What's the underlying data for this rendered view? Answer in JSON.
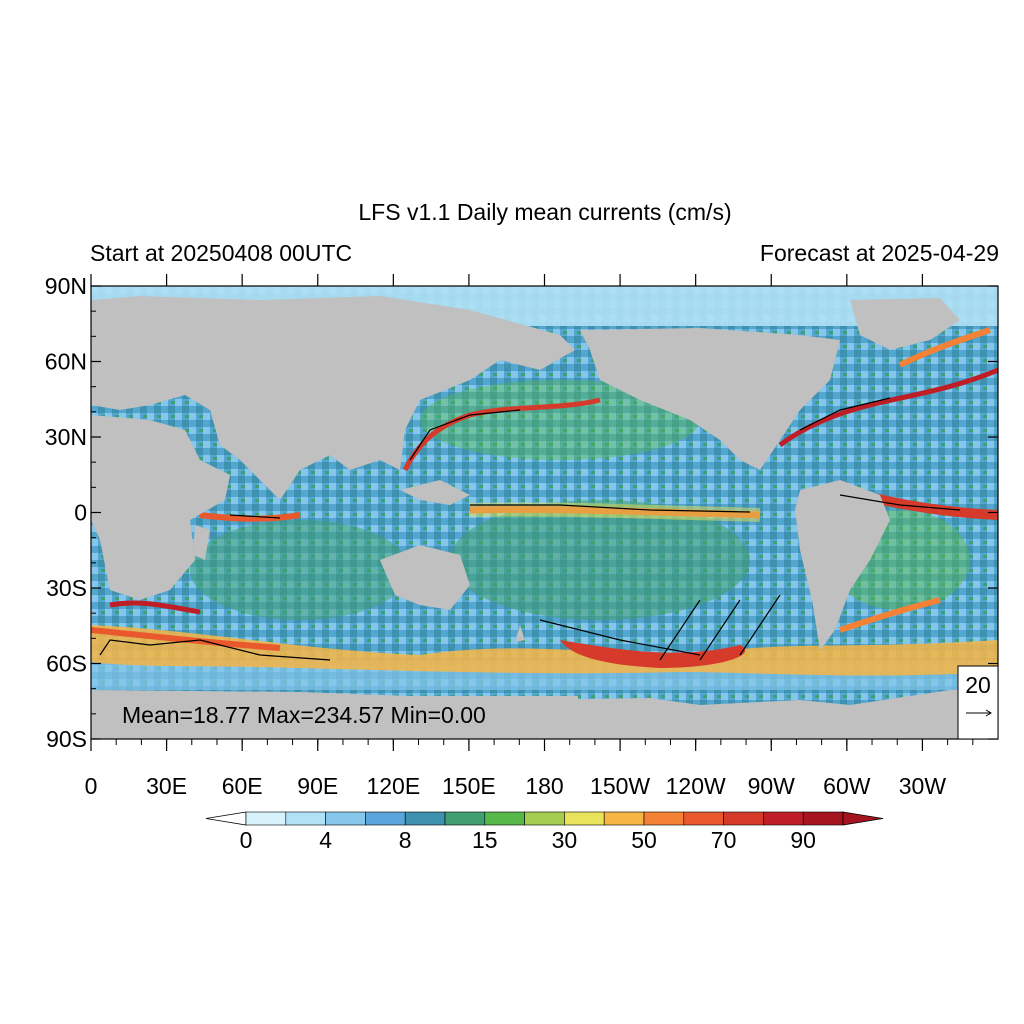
{
  "title": "LFS v1.1 Daily mean currents (cm/s)",
  "subtitle_left": "Start at 20250408 00UTC",
  "subtitle_right": "Forecast at 2025-04-29",
  "stats": "Mean=18.77  Max=234.57  Min=0.00",
  "lat_labels": [
    "90N",
    "60N",
    "30N",
    "0",
    "30S",
    "60S",
    "90S"
  ],
  "lon_labels": [
    "0",
    "30E",
    "60E",
    "90E",
    "120E",
    "150E",
    "180",
    "150W",
    "120W",
    "90W",
    "60W",
    "30W"
  ],
  "reference_vector": {
    "value": "20",
    "arrow": "→"
  },
  "colorbar": {
    "labels": [
      "0",
      "4",
      "8",
      "15",
      "30",
      "50",
      "70",
      "90"
    ],
    "colors": [
      "#d8f2fb",
      "#b0e1f5",
      "#85c6ea",
      "#5aa5db",
      "#3f91b0",
      "#3f9f70",
      "#56b848",
      "#a5cd4f",
      "#e8e35a",
      "#f7b545",
      "#f48135",
      "#e9592d",
      "#d63a2a",
      "#c01e26",
      "#a5141f"
    ],
    "under_color": "#ffffff",
    "over_color": "#a5141f"
  },
  "colors": {
    "land": "#c0c0c0",
    "vectors": "#000000"
  }
}
